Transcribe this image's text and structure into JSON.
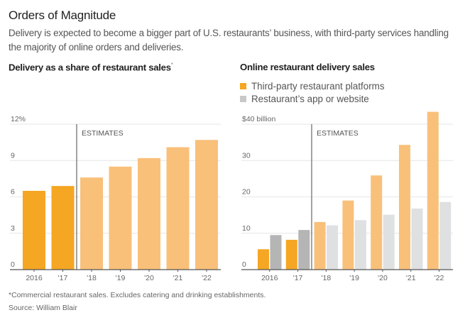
{
  "header": {
    "title": "Orders of Magnitude",
    "subtitle": "Delivery is expected to become a bigger part of U.S. restaurants’ business, with third-party services handling the majority of online orders and deliveries."
  },
  "footer": {
    "footnote": "*Commercial restaurant sales. Excludes catering and drinking establishments.",
    "source": "Source: William Blair"
  },
  "colors": {
    "actual_orange": "#f5a623",
    "estimate_orange": "#f9c07a",
    "actual_gray": "#b5b5b5",
    "estimate_gray": "#dfe0e2",
    "axis": "#555555",
    "grid": "#e6e6e6",
    "tick_text": "#666666"
  },
  "chart_data": [
    {
      "type": "bar",
      "title": "Delivery as a share of restaurant sales",
      "title_footnote_mark": "*",
      "categories": [
        "2016",
        "'17",
        "'18",
        "'19",
        "'20",
        "'21",
        "'22"
      ],
      "values": [
        6.5,
        6.9,
        7.6,
        8.5,
        9.2,
        10.1,
        10.7
      ],
      "estimate_start_index": 2,
      "annotation": "ESTIMATES",
      "xlabel": "",
      "ylabel": "",
      "ylim": [
        0,
        12
      ],
      "yticks": [
        0,
        3,
        6,
        9,
        12
      ],
      "ytick_labels": [
        "0",
        "3",
        "6",
        "9",
        "12%"
      ],
      "grid": true
    },
    {
      "type": "bar",
      "title": "Online restaurant delivery sales",
      "categories": [
        "2016",
        "'17",
        "'18",
        "'19",
        "'20",
        "'21",
        "'22"
      ],
      "series": [
        {
          "name": "Third-party restaurant platforms",
          "values": [
            5.6,
            8.2,
            13.1,
            19.0,
            25.9,
            34.3,
            43.4
          ]
        },
        {
          "name": "Restaurant’s app or website",
          "values": [
            9.5,
            10.9,
            12.2,
            13.6,
            15.1,
            16.8,
            18.6
          ]
        }
      ],
      "estimate_start_index": 2,
      "annotation": "ESTIMATES",
      "xlabel": "",
      "ylabel": "",
      "ylim": [
        0,
        40
      ],
      "yticks": [
        0,
        10,
        20,
        30,
        40
      ],
      "ytick_labels": [
        "0",
        "10",
        "20",
        "30",
        "$40 billion"
      ],
      "legend_position": "top-left",
      "grid": true
    }
  ]
}
